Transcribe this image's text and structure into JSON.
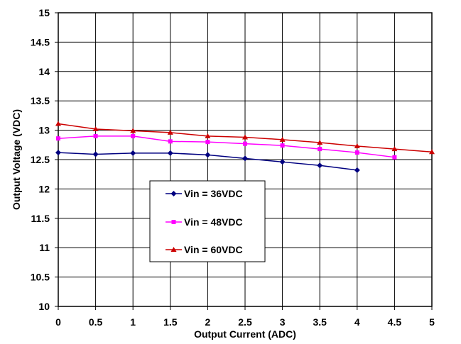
{
  "chart_data": {
    "type": "line",
    "title": "",
    "xlabel": "Output Current (ADC)",
    "ylabel": "Output Voltage (VDC)",
    "xlim": [
      0,
      5
    ],
    "ylim": [
      10,
      15
    ],
    "x_ticks": [
      "0",
      "0.5",
      "1",
      "1.5",
      "2",
      "2.5",
      "3",
      "3.5",
      "4",
      "4.5",
      "5"
    ],
    "y_ticks": [
      "10",
      "10.5",
      "11",
      "11.5",
      "12",
      "12.5",
      "13",
      "13.5",
      "14",
      "14.5",
      "15"
    ],
    "grid": true,
    "legend_position": "lower-center",
    "series": [
      {
        "name": "Vin = 36VDC",
        "color": "#000080",
        "marker": "diamond",
        "x": [
          0,
          0.5,
          1,
          1.5,
          2,
          2.5,
          3,
          3.5,
          4
        ],
        "values": [
          12.62,
          12.59,
          12.61,
          12.61,
          12.58,
          12.52,
          12.46,
          12.4,
          12.32
        ]
      },
      {
        "name": "Vin = 48VDC",
        "color": "#ff00ff",
        "marker": "square",
        "x": [
          0,
          0.5,
          1,
          1.5,
          2,
          2.5,
          3,
          3.5,
          4,
          4.5
        ],
        "values": [
          12.86,
          12.9,
          12.9,
          12.81,
          12.8,
          12.77,
          12.74,
          12.68,
          12.62,
          12.54
        ]
      },
      {
        "name": "Vin = 60VDC",
        "color": "#cc0000",
        "marker": "triangle",
        "x": [
          0,
          0.5,
          1,
          1.5,
          2,
          2.5,
          3,
          3.5,
          4,
          4.5,
          5
        ],
        "values": [
          13.11,
          13.02,
          12.99,
          12.96,
          12.9,
          12.88,
          12.84,
          12.79,
          12.73,
          12.68,
          12.63
        ]
      }
    ]
  }
}
